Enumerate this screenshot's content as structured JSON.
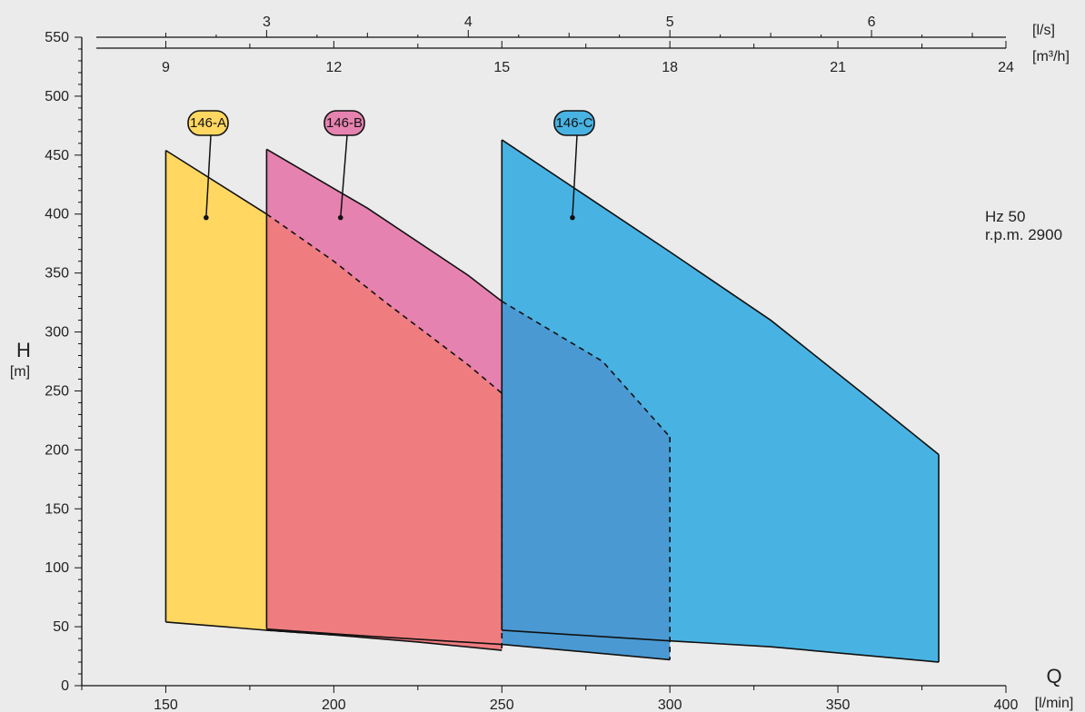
{
  "chart_data": {
    "type": "area",
    "x_axis": {
      "label": "Q",
      "unit": "[l/min]",
      "range": [
        125,
        400
      ],
      "ticks": [
        150,
        200,
        250,
        300,
        350,
        400
      ]
    },
    "y_axis": {
      "label": "H",
      "unit": "[m]",
      "range": [
        0,
        550
      ],
      "ticks": [
        0,
        50,
        100,
        150,
        200,
        250,
        300,
        350,
        400,
        450,
        500,
        550
      ]
    },
    "top_axis_ls": {
      "unit": "[l/s]",
      "ticks": [
        3,
        4,
        5,
        6
      ]
    },
    "top_axis_m3h": {
      "unit": "[m³/h]",
      "ticks": [
        9,
        12,
        15,
        18,
        21,
        24
      ]
    },
    "info": [
      "Hz 50",
      "r.p.m. 2900"
    ],
    "series": [
      {
        "name": "146-A",
        "color": "#ffd761",
        "top": [
          [
            150,
            454
          ],
          [
            180,
            400
          ],
          [
            200,
            360
          ],
          [
            215,
            326
          ],
          [
            240,
            272
          ],
          [
            250,
            248
          ]
        ],
        "bottom": [
          [
            150,
            54
          ],
          [
            180,
            47
          ],
          [
            200,
            43
          ],
          [
            225,
            37
          ],
          [
            250,
            30
          ]
        ],
        "label_point": [
          162,
          397
        ]
      },
      {
        "name": "146-B",
        "color": "#e682b0",
        "top": [
          [
            180,
            455
          ],
          [
            210,
            405
          ],
          [
            240,
            348
          ],
          [
            250,
            326
          ],
          [
            280,
            275
          ],
          [
            300,
            211
          ]
        ],
        "bottom": [
          [
            180,
            48
          ],
          [
            210,
            42
          ],
          [
            250,
            35
          ],
          [
            300,
            22
          ]
        ],
        "label_point": [
          202,
          397
        ]
      },
      {
        "name": "146-C",
        "color": "#48b3e3",
        "top": [
          [
            250,
            463
          ],
          [
            300,
            368
          ],
          [
            330,
            310
          ],
          [
            360,
            242
          ],
          [
            380,
            196
          ]
        ],
        "bottom": [
          [
            250,
            47
          ],
          [
            300,
            38
          ],
          [
            330,
            33
          ],
          [
            380,
            20
          ]
        ],
        "label_point": [
          271,
          397
        ]
      }
    ]
  }
}
